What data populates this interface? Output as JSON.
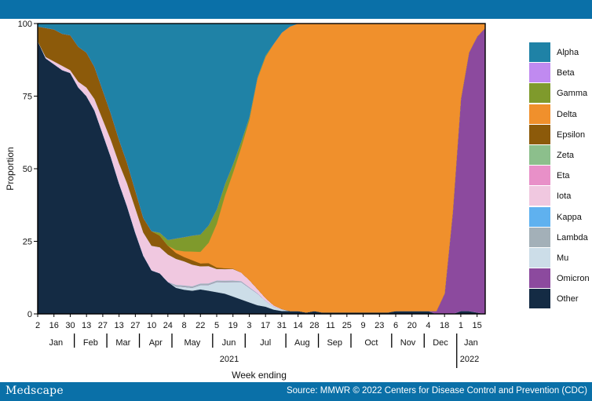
{
  "header": {
    "brand": "Medscape",
    "source": "Source: MMWR © 2022 Centers for Disease Control and Prevention (CDC)"
  },
  "chart_data": {
    "type": "area",
    "stacked": true,
    "ylabel": "Proportion",
    "xlabel": "Week ending",
    "ylim": [
      0,
      100
    ],
    "yticks": [
      0,
      25,
      50,
      75,
      100
    ],
    "year_labels": [
      "2021",
      "2022"
    ],
    "x_ticks": [
      "2",
      "16",
      "30",
      "13",
      "27",
      "13",
      "27",
      "10",
      "24",
      "8",
      "22",
      "5",
      "19",
      "3",
      "17",
      "31",
      "14",
      "28",
      "11",
      "25",
      "9",
      "23",
      "6",
      "20",
      "4",
      "18",
      "1",
      "15"
    ],
    "months": [
      "Jan",
      "Feb",
      "Mar",
      "Apr",
      "May",
      "Jun",
      "Jul",
      "Aug",
      "Sep",
      "Oct",
      "Nov",
      "Dec",
      "Jan"
    ],
    "x": [
      "2021-01-02",
      "2021-01-09",
      "2021-01-16",
      "2021-01-23",
      "2021-01-30",
      "2021-02-06",
      "2021-02-13",
      "2021-02-20",
      "2021-02-27",
      "2021-03-06",
      "2021-03-13",
      "2021-03-20",
      "2021-03-27",
      "2021-04-03",
      "2021-04-10",
      "2021-04-17",
      "2021-04-24",
      "2021-05-01",
      "2021-05-08",
      "2021-05-15",
      "2021-05-22",
      "2021-05-29",
      "2021-06-05",
      "2021-06-12",
      "2021-06-19",
      "2021-06-26",
      "2021-07-03",
      "2021-07-10",
      "2021-07-17",
      "2021-07-24",
      "2021-07-31",
      "2021-08-07",
      "2021-08-14",
      "2021-08-21",
      "2021-08-28",
      "2021-09-04",
      "2021-09-11",
      "2021-09-18",
      "2021-09-25",
      "2021-10-02",
      "2021-10-09",
      "2021-10-16",
      "2021-10-23",
      "2021-10-30",
      "2021-11-06",
      "2021-11-13",
      "2021-11-20",
      "2021-11-27",
      "2021-12-04",
      "2021-12-11",
      "2021-12-18",
      "2021-12-25",
      "2022-01-01",
      "2022-01-08",
      "2022-01-15",
      "2022-01-22"
    ],
    "series": [
      {
        "name": "Other",
        "color": "#142b44",
        "values": [
          94,
          88,
          86,
          84,
          83,
          78,
          75,
          70,
          62,
          54,
          45,
          37,
          28,
          20,
          15,
          14,
          11,
          9,
          8.5,
          8,
          8.5,
          8,
          7.5,
          7,
          6,
          5,
          4,
          3,
          2.5,
          1.5,
          1,
          1,
          1,
          0.5,
          1,
          0.5,
          0.5,
          0.5,
          0.5,
          0.5,
          0.5,
          0.5,
          0.5,
          0.5,
          1,
          1,
          1,
          1,
          1,
          0,
          0,
          0,
          1,
          1,
          0.5,
          0
        ]
      },
      {
        "name": "Mu",
        "color": "#ccdde8",
        "values": [
          0,
          0,
          0,
          0,
          0,
          0,
          0,
          0,
          0,
          0,
          0,
          0,
          0,
          0,
          0,
          0,
          0,
          0.5,
          1,
          1,
          1.5,
          2,
          3.5,
          4,
          5,
          6,
          5,
          4,
          2,
          1,
          0.5,
          0,
          0,
          0,
          0,
          0,
          0,
          0,
          0,
          0,
          0,
          0,
          0,
          0,
          0,
          0,
          0,
          0,
          0,
          0,
          0,
          0,
          0,
          0,
          0,
          0
        ]
      },
      {
        "name": "Omicron",
        "color": "#8c4a9e",
        "values": [
          0,
          0,
          0,
          0,
          0,
          0,
          0,
          0,
          0,
          0,
          0,
          0,
          0,
          0,
          0,
          0,
          0,
          0,
          0,
          0,
          0,
          0,
          0,
          0,
          0,
          0,
          0,
          0,
          0,
          0,
          0,
          0,
          0,
          0,
          0,
          0,
          0,
          0,
          0,
          0,
          0,
          0,
          0,
          0,
          0,
          0,
          0,
          0,
          0,
          1,
          7,
          35,
          73,
          89,
          95,
          98.5
        ]
      },
      {
        "name": "Lambda",
        "color": "#a3b0b8",
        "values": [
          0,
          0,
          0,
          0,
          0,
          0,
          0,
          0,
          0,
          0,
          0,
          0,
          0,
          0,
          0,
          0,
          0,
          0.5,
          0.5,
          0.5,
          0.5,
          0.5,
          0.5,
          0.5,
          0.5,
          0.3,
          0.2,
          0.1,
          0,
          0,
          0,
          0,
          0,
          0,
          0,
          0,
          0,
          0,
          0,
          0,
          0,
          0,
          0,
          0,
          0,
          0,
          0,
          0,
          0,
          0,
          0,
          0,
          0,
          0,
          0,
          0
        ]
      },
      {
        "name": "Kappa",
        "color": "#5fb1ef",
        "values": [
          0,
          0,
          0,
          0,
          0,
          0,
          0,
          0,
          0,
          0,
          0,
          0,
          0,
          0,
          0,
          0,
          0,
          0,
          0,
          0,
          0,
          0,
          0,
          0,
          0,
          0,
          0,
          0,
          0,
          0,
          0,
          0,
          0,
          0,
          0,
          0,
          0,
          0,
          0,
          0,
          0,
          0,
          0,
          0,
          0,
          0,
          0,
          0,
          0,
          0,
          0,
          0,
          0,
          0,
          0,
          0
        ]
      },
      {
        "name": "Iota",
        "color": "#f0c8e0",
        "values": [
          0,
          0.5,
          1,
          1.5,
          1,
          2,
          3,
          4,
          5,
          6,
          7,
          8,
          8.5,
          8,
          8.5,
          9,
          9.5,
          9,
          8.5,
          7.5,
          6,
          6,
          4,
          4,
          4,
          3,
          2.5,
          1.5,
          1,
          0.5,
          0.2,
          0,
          0,
          0,
          0,
          0,
          0,
          0,
          0,
          0,
          0,
          0,
          0,
          0,
          0,
          0,
          0,
          0,
          0,
          0,
          0,
          0,
          0,
          0,
          0,
          0
        ]
      },
      {
        "name": "Eta",
        "color": "#e890c8",
        "values": [
          0,
          0,
          0,
          0,
          0,
          0,
          0,
          0,
          0,
          0,
          0,
          0,
          0,
          0,
          0,
          0,
          0,
          0,
          0,
          0,
          0,
          0,
          0,
          0,
          0,
          0,
          0,
          0,
          0,
          0,
          0,
          0,
          0,
          0,
          0,
          0,
          0,
          0,
          0,
          0,
          0,
          0,
          0,
          0,
          0,
          0,
          0,
          0,
          0,
          0,
          0,
          0,
          0,
          0,
          0,
          0
        ]
      },
      {
        "name": "Zeta",
        "color": "#8cbf8c",
        "values": [
          0,
          0,
          0,
          0,
          0,
          0,
          0,
          0,
          0,
          0,
          0,
          0,
          0,
          0,
          0,
          0,
          0,
          0,
          0,
          0,
          0,
          0,
          0,
          0,
          0,
          0,
          0,
          0,
          0,
          0,
          0,
          0,
          0,
          0,
          0,
          0,
          0,
          0,
          0,
          0,
          0,
          0,
          0,
          0,
          0,
          0,
          0,
          0,
          0,
          0,
          0,
          0,
          0,
          0,
          0,
          0
        ]
      },
      {
        "name": "Epsilon",
        "color": "#8c5a0a",
        "values": [
          5,
          10,
          11,
          11,
          12,
          12,
          12,
          11,
          10,
          9,
          8,
          7,
          6,
          5,
          5,
          4,
          3,
          2,
          1.5,
          1.5,
          1,
          1,
          0.5,
          0.3,
          0.1,
          0,
          0,
          0,
          0,
          0,
          0,
          0,
          0,
          0,
          0,
          0,
          0,
          0,
          0,
          0,
          0,
          0,
          0,
          0,
          0,
          0,
          0,
          0,
          0,
          0,
          0,
          0,
          0,
          0,
          0,
          0
        ]
      },
      {
        "name": "Delta",
        "color": "#f0902c",
        "values": [
          0,
          0,
          0,
          0,
          0,
          0,
          0,
          0,
          0,
          0,
          0,
          0,
          0,
          0,
          0,
          0,
          0,
          1,
          2,
          3,
          4,
          7,
          15,
          25,
          33,
          43,
          55,
          72,
          83,
          90,
          95,
          98,
          99,
          99.5,
          99,
          99.5,
          99.5,
          99.5,
          99.5,
          99.5,
          99.5,
          99.5,
          99.5,
          99.5,
          99,
          99,
          99,
          99,
          99,
          99,
          93,
          65,
          26,
          10,
          4.5,
          1.5
        ]
      },
      {
        "name": "Gamma",
        "color": "#7f9a2c",
        "values": [
          0,
          0,
          0,
          0,
          0,
          0,
          0,
          0,
          0,
          0,
          0,
          0,
          0,
          0,
          0,
          1,
          2,
          4,
          5,
          5.5,
          6,
          6,
          5,
          4,
          3,
          2,
          1,
          0.5,
          0.5,
          0,
          0,
          0,
          0,
          0,
          0,
          0,
          0,
          0,
          0,
          0,
          0,
          0,
          0,
          0,
          0,
          0,
          0,
          0,
          0,
          0,
          0,
          0,
          0,
          0,
          0,
          0
        ]
      },
      {
        "name": "Beta",
        "color": "#c08af0",
        "values": [
          0,
          0,
          0,
          0,
          0,
          0,
          0,
          0,
          0,
          0,
          0,
          0,
          0,
          0,
          0,
          0,
          0,
          0,
          0,
          0,
          0,
          0,
          0,
          0,
          0,
          0,
          0,
          0,
          0,
          0,
          0,
          0,
          0,
          0,
          0,
          0,
          0,
          0,
          0,
          0,
          0,
          0,
          0,
          0,
          0,
          0,
          0,
          0,
          0,
          0,
          0,
          0,
          0,
          0,
          0,
          0
        ]
      },
      {
        "name": "Alpha",
        "color": "#1f82a6",
        "values": [
          1,
          1.5,
          2,
          3.5,
          4,
          8,
          10,
          15,
          23,
          31,
          40,
          48,
          57.5,
          67,
          71.5,
          72,
          74.5,
          74,
          75,
          73,
          73,
          69.5,
          64,
          55.5,
          48.4,
          40.7,
          32.3,
          18.4,
          11,
          7,
          3.1,
          1,
          0,
          0,
          0,
          0,
          0,
          0,
          0,
          0,
          0,
          0,
          0,
          0,
          0,
          0,
          0,
          0,
          0,
          0,
          0,
          0,
          0,
          0,
          0,
          0
        ]
      }
    ],
    "legend": [
      {
        "label": "Alpha",
        "color": "#1f82a6"
      },
      {
        "label": "Beta",
        "color": "#c08af0"
      },
      {
        "label": "Gamma",
        "color": "#7f9a2c"
      },
      {
        "label": "Delta",
        "color": "#f0902c"
      },
      {
        "label": "Epsilon",
        "color": "#8c5a0a"
      },
      {
        "label": "Zeta",
        "color": "#8cbf8c"
      },
      {
        "label": "Eta",
        "color": "#e890c8"
      },
      {
        "label": "Iota",
        "color": "#f0c8e0"
      },
      {
        "label": "Kappa",
        "color": "#5fb1ef"
      },
      {
        "label": "Lambda",
        "color": "#a3b0b8"
      },
      {
        "label": "Mu",
        "color": "#ccdde8"
      },
      {
        "label": "Omicron",
        "color": "#8c4a9e"
      },
      {
        "label": "Other",
        "color": "#142b44"
      }
    ]
  }
}
